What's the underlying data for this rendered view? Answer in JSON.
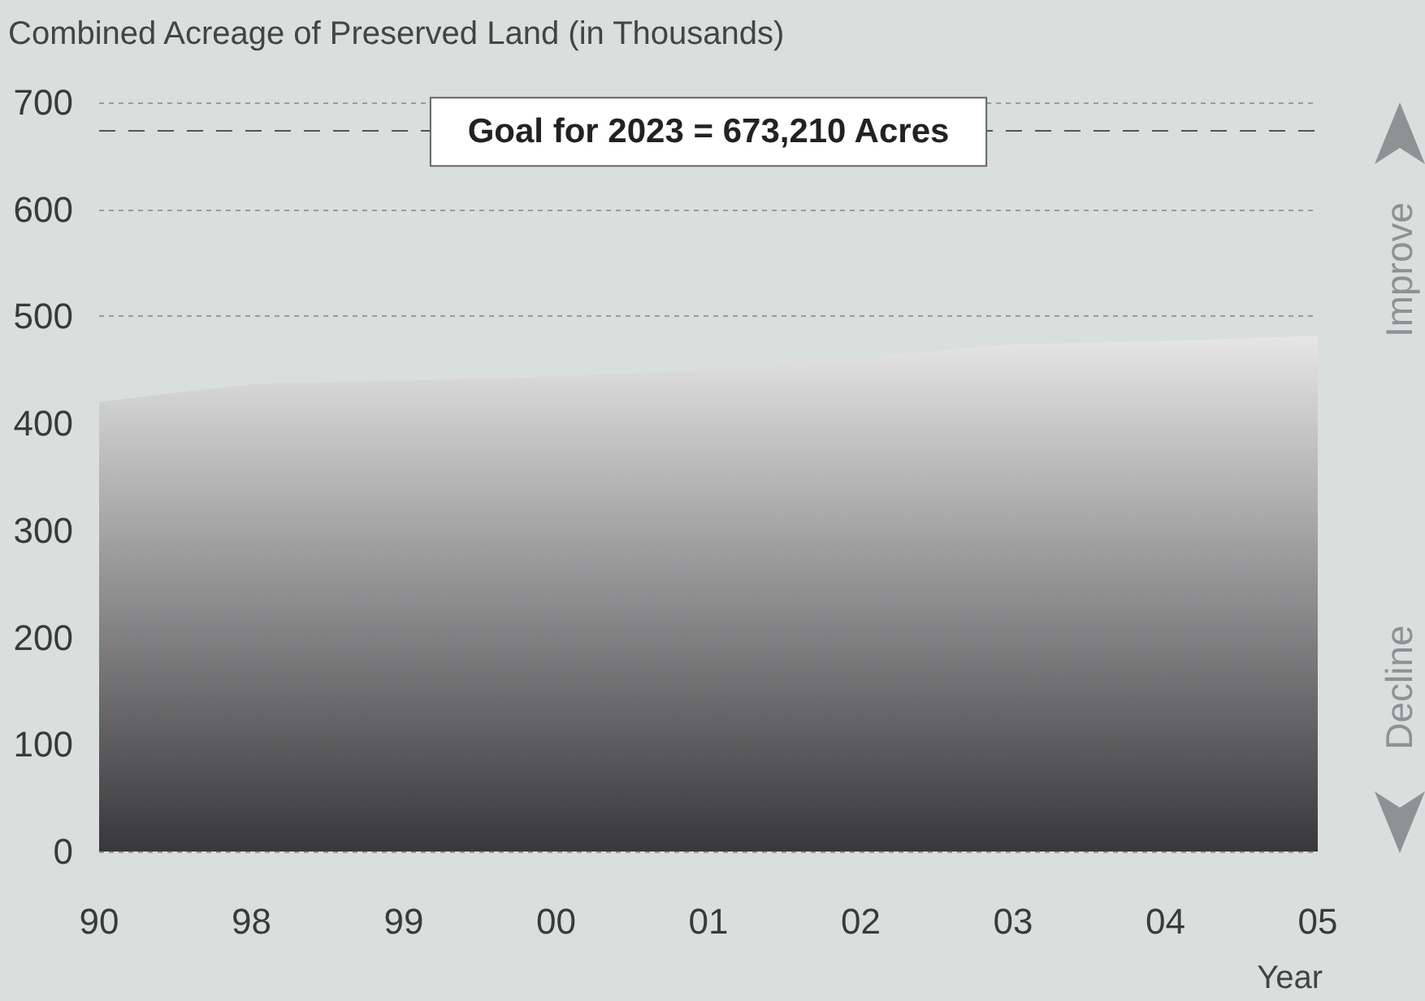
{
  "chart_data": {
    "type": "area",
    "ylabel": "Combined Acreage of Preserved Land (in Thousands)",
    "xlabel": "Year",
    "categories": [
      "90",
      "98",
      "99",
      "00",
      "01",
      "02",
      "03",
      "04",
      "05"
    ],
    "values": [
      420,
      437,
      440,
      444,
      450,
      462,
      474,
      477,
      482
    ],
    "color": "#8c8d91",
    "ylim": [
      0,
      700
    ],
    "yticks": [
      0,
      100,
      200,
      300,
      400,
      500,
      600,
      700
    ],
    "grid": "y",
    "ref_lines": [
      {
        "axis": "y",
        "value": 673.21,
        "label": "Goal for 2023 = 673,210 Acres",
        "color": "#555555",
        "line_style": "dashed"
      }
    ],
    "annotations": [
      "Improve",
      "Decline"
    ]
  }
}
